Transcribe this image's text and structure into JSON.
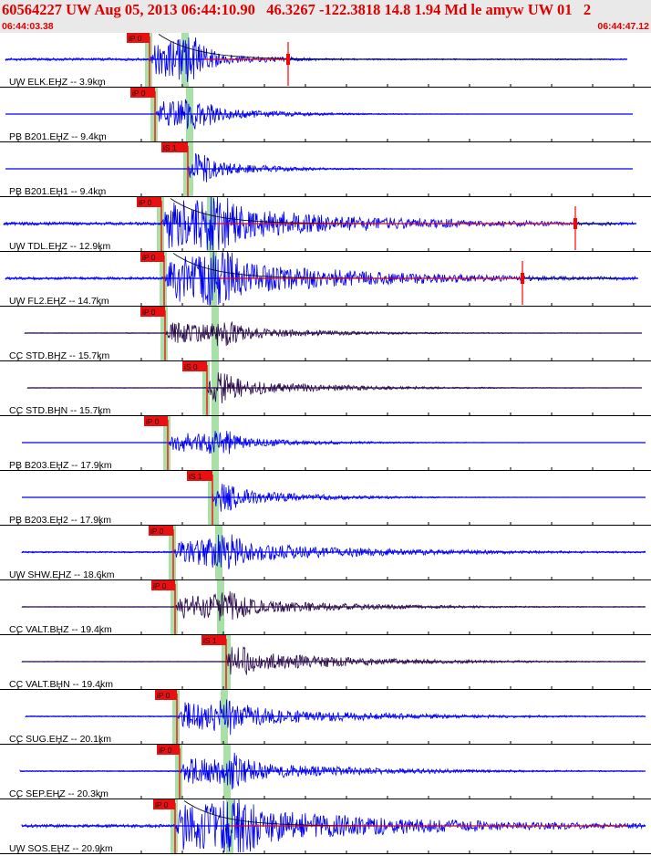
{
  "header": {
    "title": "60564227 UW Aug 05, 2013 06:44:10.90   46.3267 -122.3818 14.8 1.94 Md le amyw UW 01   2",
    "time_start": "06:44:03.38",
    "time_end": "06:44:47.12"
  },
  "colors": {
    "trace_blue": "#0000ee",
    "trace_dark": "#2a0a4a",
    "pick_red": "#ff0000",
    "pick_box": "#e81010",
    "window_green": "#a8e0a8",
    "separator": "#000000",
    "header_bg": "#e9e9e9",
    "title_red": "#e00000"
  },
  "chart_data": {
    "type": "seismogram",
    "time_start": "06:44:03.38",
    "time_end": "06:44:47.12",
    "traces": [
      {
        "label": "UW ELK.EHZ -- 3.9km",
        "pick": "iP 0",
        "color": "blue",
        "amp": 0.9,
        "noise": 0.05,
        "decay": 0.35,
        "clip": true,
        "coda": true
      },
      {
        "label": "PB B201.EHZ -- 9.4km",
        "pick": "iP 0",
        "color": "blue",
        "amp": 0.55,
        "noise": 0.0,
        "decay": 0.25,
        "clip": false,
        "coda": false
      },
      {
        "label": "PB B201.EH1 -- 9.4km",
        "pick": "iS 1",
        "color": "blue",
        "amp": 0.45,
        "noise": 0.0,
        "decay": 0.3,
        "clip": false,
        "coda": false
      },
      {
        "label": "UW TDL.EHZ -- 12.9km",
        "pick": "iP 0",
        "color": "blue",
        "amp": 1.0,
        "noise": 0.06,
        "decay": 0.12,
        "clip": true,
        "coda": true
      },
      {
        "label": "UW FL2.EHZ -- 14.7km",
        "pick": "iP 0",
        "color": "blue",
        "amp": 1.0,
        "noise": 0.05,
        "decay": 0.12,
        "clip": true,
        "coda": true
      },
      {
        "label": "CC STD.BHZ -- 15.7km",
        "pick": "iP 0",
        "color": "dark",
        "amp": 0.45,
        "noise": 0.01,
        "decay": 0.18,
        "clip": false,
        "coda": false
      },
      {
        "label": "CC STD.BHN -- 15.7km",
        "pick": "iS 0",
        "color": "dark",
        "amp": 0.4,
        "noise": 0.01,
        "decay": 0.18,
        "clip": false,
        "coda": false
      },
      {
        "label": "PB B203.EHZ -- 17.9km",
        "pick": "iP 0",
        "color": "blue",
        "amp": 0.45,
        "noise": 0.0,
        "decay": 0.22,
        "clip": false,
        "coda": false
      },
      {
        "label": "PB B203.EH2 -- 17.9km",
        "pick": "iS 1",
        "color": "blue",
        "amp": 0.4,
        "noise": 0.0,
        "decay": 0.22,
        "clip": false,
        "coda": false
      },
      {
        "label": "UW SHW.EHZ -- 18.6km",
        "pick": "iP 0",
        "color": "blue",
        "amp": 0.55,
        "noise": 0.03,
        "decay": 0.12,
        "clip": false,
        "coda": false
      },
      {
        "label": "CC VALT.BHZ -- 19.4km",
        "pick": "iP 0",
        "color": "dark",
        "amp": 0.5,
        "noise": 0.01,
        "decay": 0.15,
        "clip": false,
        "coda": false
      },
      {
        "label": "CC VALT.BHN -- 19.4km",
        "pick": "iS 1",
        "color": "dark",
        "amp": 0.45,
        "noise": 0.01,
        "decay": 0.15,
        "clip": false,
        "coda": false
      },
      {
        "label": "CC SUG.EHZ -- 20.1km",
        "pick": "iP 0",
        "color": "blue",
        "amp": 0.6,
        "noise": 0.02,
        "decay": 0.14,
        "clip": false,
        "coda": false
      },
      {
        "label": "CC SEP.EHZ -- 20.3km",
        "pick": "iP 0",
        "color": "blue",
        "amp": 0.55,
        "noise": 0.02,
        "decay": 0.14,
        "clip": false,
        "coda": false
      },
      {
        "label": "UW SOS.EHZ -- 20.9km",
        "pick": "iP 0",
        "color": "blue",
        "amp": 1.0,
        "noise": 0.06,
        "decay": 0.1,
        "clip": true,
        "coda": true
      }
    ]
  }
}
